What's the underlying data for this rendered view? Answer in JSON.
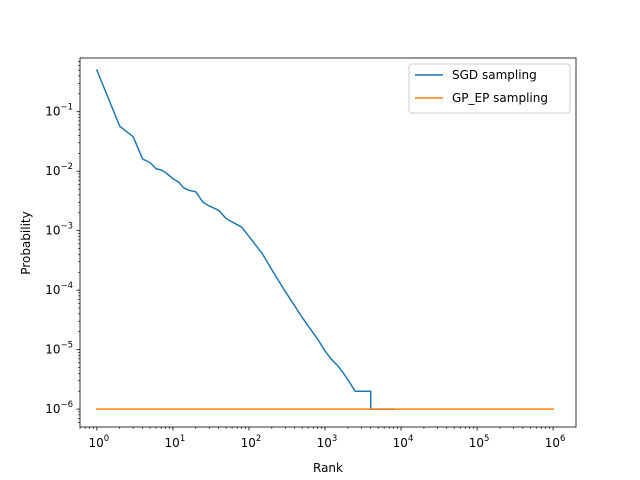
{
  "chart_data": {
    "type": "line",
    "xlabel": "Rank",
    "ylabel": "Probability",
    "xscale": "log",
    "yscale": "log",
    "xlim": [
      0.6,
      2000000
    ],
    "ylim": [
      5e-07,
      0.8
    ],
    "x_ticks": [
      {
        "value": 1,
        "base": "10",
        "exp": "0"
      },
      {
        "value": 10,
        "base": "10",
        "exp": "1"
      },
      {
        "value": 100,
        "base": "10",
        "exp": "2"
      },
      {
        "value": 1000,
        "base": "10",
        "exp": "3"
      },
      {
        "value": 10000,
        "base": "10",
        "exp": "4"
      },
      {
        "value": 100000,
        "base": "10",
        "exp": "5"
      },
      {
        "value": 1000000,
        "base": "10",
        "exp": "6"
      }
    ],
    "y_ticks": [
      {
        "value": 1e-06,
        "base": "10",
        "exp": "−6"
      },
      {
        "value": 1e-05,
        "base": "10",
        "exp": "−5"
      },
      {
        "value": 0.0001,
        "base": "10",
        "exp": "−4"
      },
      {
        "value": 0.001,
        "base": "10",
        "exp": "−3"
      },
      {
        "value": 0.01,
        "base": "10",
        "exp": "−2"
      },
      {
        "value": 0.1,
        "base": "10",
        "exp": "−1"
      }
    ],
    "grid": false,
    "legend_position": "top-right",
    "series": [
      {
        "name": "SGD sampling",
        "color": "#1f77b4",
        "x": [
          1,
          2,
          3,
          4,
          5,
          6,
          7,
          8,
          10,
          12,
          14,
          16,
          20,
          24,
          25,
          30,
          40,
          50,
          60,
          80,
          100,
          150,
          200,
          300,
          500,
          800,
          1000,
          1200,
          1500,
          1800,
          2000,
          2500,
          3000,
          3500,
          4000,
          4000,
          8000
        ],
        "y": [
          0.5,
          0.057,
          0.038,
          0.016,
          0.014,
          0.011,
          0.0105,
          0.0095,
          0.0075,
          0.0065,
          0.0052,
          0.0048,
          0.0045,
          0.0032,
          0.003,
          0.0026,
          0.0022,
          0.0016,
          0.0014,
          0.00115,
          0.0008,
          0.00041,
          0.00022,
          9.5e-05,
          3.5e-05,
          1.5e-05,
          9.5e-06,
          7e-06,
          5.2e-06,
          3.8e-06,
          3.1e-06,
          2e-06,
          2e-06,
          2e-06,
          2e-06,
          1e-06,
          1e-06
        ]
      },
      {
        "name": "GP_EP sampling",
        "color": "#ff7f0e",
        "x": [
          1,
          1000000
        ],
        "y": [
          1e-06,
          1e-06
        ]
      }
    ]
  }
}
